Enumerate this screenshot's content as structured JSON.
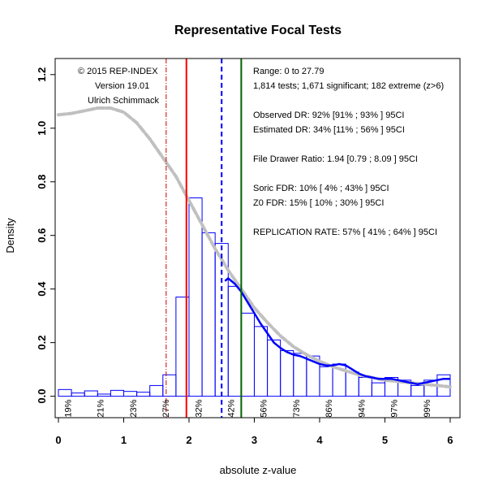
{
  "chart_data": {
    "type": "bar",
    "title": "Representative Focal Tests",
    "xlabel": "absolute z-value",
    "ylabel": "Density",
    "xlim": [
      -0.05,
      6.15
    ],
    "ylim": [
      -0.08,
      1.26
    ],
    "x_ticks": [
      0,
      1,
      2,
      3,
      4,
      5,
      6
    ],
    "y_ticks": [
      0.0,
      0.2,
      0.4,
      0.6,
      0.8,
      1.0,
      1.2
    ],
    "y_tick_labels": [
      "0.0",
      "0.2",
      "0.4",
      "0.6",
      "0.8",
      "1.0",
      "1.2"
    ],
    "histogram": {
      "bin_width": 0.2,
      "bins_start": [
        0,
        0.2,
        0.4,
        0.6,
        0.8,
        1.0,
        1.2,
        1.4,
        1.6,
        1.8,
        2.0,
        2.2,
        2.4,
        2.6,
        2.8,
        3.0,
        3.2,
        3.4,
        3.6,
        3.8,
        4.0,
        4.2,
        4.4,
        4.6,
        4.8,
        5.0,
        5.2,
        5.4,
        5.6,
        5.8
      ],
      "densities": [
        0.025,
        0.012,
        0.02,
        0.008,
        0.022,
        0.018,
        0.015,
        0.04,
        0.08,
        0.37,
        0.74,
        0.61,
        0.57,
        0.41,
        0.31,
        0.26,
        0.21,
        0.17,
        0.16,
        0.15,
        0.11,
        0.12,
        0.09,
        0.07,
        0.05,
        0.07,
        0.06,
        0.04,
        0.06,
        0.08
      ],
      "color": "#0000ff"
    },
    "density_curve_grey": {
      "x": [
        0,
        0.2,
        0.4,
        0.6,
        0.8,
        1.0,
        1.2,
        1.4,
        1.6,
        1.8,
        2.0,
        2.2,
        2.4,
        2.6,
        2.8,
        3.0,
        3.2,
        3.4,
        3.6,
        3.8,
        4.0,
        4.2,
        4.4,
        4.6,
        4.8,
        5.0,
        5.2,
        5.4,
        5.6,
        5.8,
        6.0
      ],
      "y": [
        1.05,
        1.055,
        1.065,
        1.075,
        1.075,
        1.06,
        1.02,
        0.96,
        0.89,
        0.82,
        0.73,
        0.64,
        0.55,
        0.47,
        0.4,
        0.33,
        0.275,
        0.225,
        0.185,
        0.155,
        0.13,
        0.11,
        0.095,
        0.08,
        0.07,
        0.06,
        0.055,
        0.05,
        0.045,
        0.04,
        0.035
      ],
      "color": "#c0c0c0"
    },
    "density_curve_blue": {
      "x": [
        2.55,
        2.6,
        2.7,
        2.8,
        2.9,
        3.0,
        3.1,
        3.2,
        3.3,
        3.4,
        3.5,
        3.6,
        3.7,
        3.8,
        3.9,
        4.0,
        4.1,
        4.2,
        4.3,
        4.4,
        4.5,
        4.6,
        4.7,
        4.8,
        4.9,
        5.0,
        5.1,
        5.2,
        5.3,
        5.4,
        5.5,
        5.6,
        5.7,
        5.8,
        5.9,
        6.0
      ],
      "y": [
        0.43,
        0.44,
        0.42,
        0.39,
        0.35,
        0.31,
        0.27,
        0.235,
        0.2,
        0.18,
        0.165,
        0.155,
        0.15,
        0.14,
        0.13,
        0.12,
        0.115,
        0.115,
        0.12,
        0.115,
        0.1,
        0.085,
        0.075,
        0.07,
        0.065,
        0.065,
        0.065,
        0.06,
        0.055,
        0.05,
        0.045,
        0.05,
        0.055,
        0.06,
        0.065,
        0.065
      ],
      "color": "#0000ff"
    },
    "vertical_lines": [
      {
        "x": 1.65,
        "color": "#cd0000",
        "style": "dashdot"
      },
      {
        "x": 1.96,
        "color": "#ff0000",
        "style": "solid"
      },
      {
        "x": 2.5,
        "color": "#0000ff",
        "style": "dashed"
      },
      {
        "x": 2.8,
        "color": "#006400",
        "style": "solid"
      }
    ],
    "percent_labels": [
      {
        "x": 0.14,
        "text": "19%"
      },
      {
        "x": 0.64,
        "text": "21%"
      },
      {
        "x": 1.14,
        "text": "23%"
      },
      {
        "x": 1.64,
        "text": "27%"
      },
      {
        "x": 2.14,
        "text": "32%"
      },
      {
        "x": 2.64,
        "text": "42%"
      },
      {
        "x": 3.14,
        "text": "56%"
      },
      {
        "x": 3.64,
        "text": "73%"
      },
      {
        "x": 4.14,
        "text": "86%"
      },
      {
        "x": 4.64,
        "text": "94%"
      },
      {
        "x": 5.14,
        "text": "97%"
      },
      {
        "x": 5.64,
        "text": "99%"
      }
    ],
    "annotations_left": [
      "© 2015 REP-INDEX",
      "Version 19.01",
      "Ulrich Schimmack"
    ],
    "annotations_right": [
      "Range: 0 to 27.79",
      "1,814 tests; 1,671 significant; 182 extreme (z>6)",
      "",
      "Observed DR: 92% [91% ; 93% ] 95CI",
      "Estimated DR: 34% [11% ; 56% ] 95CI",
      "",
      "File Drawer Ratio: 1.94 [0.79 ; 8.09 ] 95CI",
      "",
      "Soric FDR: 10% [ 4% ; 43% ] 95CI",
      "Z0 FDR: 15% [ 10% ; 30% ] 95CI",
      "",
      "REPLICATION RATE: 57% [ 41% ; 64% ] 95CI"
    ]
  }
}
